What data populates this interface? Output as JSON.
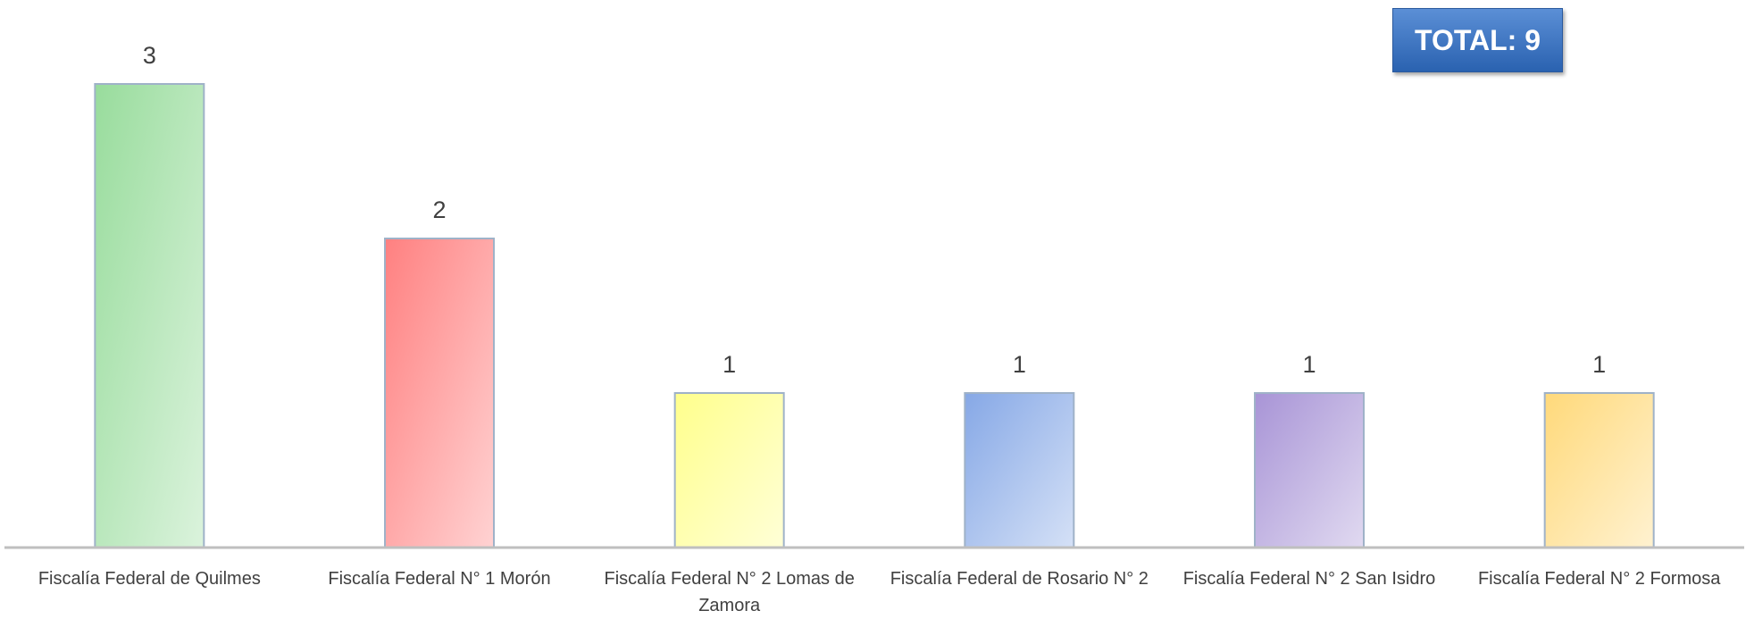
{
  "chart_data": {
    "type": "bar",
    "annotation": "TOTAL: 9",
    "categories": [
      "Fiscalía Federal de Quilmes",
      "Fiscalía Federal N° 1 Morón",
      "Fiscalía Federal N° 2 Lomas de Zamora",
      "Fiscalía Federal de Rosario N° 2",
      "Fiscalía Federal N° 2 San Isidro",
      "Fiscalía Federal N° 2 Formosa"
    ],
    "values": [
      3,
      2,
      1,
      1,
      1,
      1
    ],
    "colors": [
      "#98dc9c",
      "#ff8080",
      "#ffff8c",
      "#86a8e6",
      "#a894d6",
      "#ffd97a"
    ],
    "ylim": [
      0,
      3.5
    ]
  }
}
